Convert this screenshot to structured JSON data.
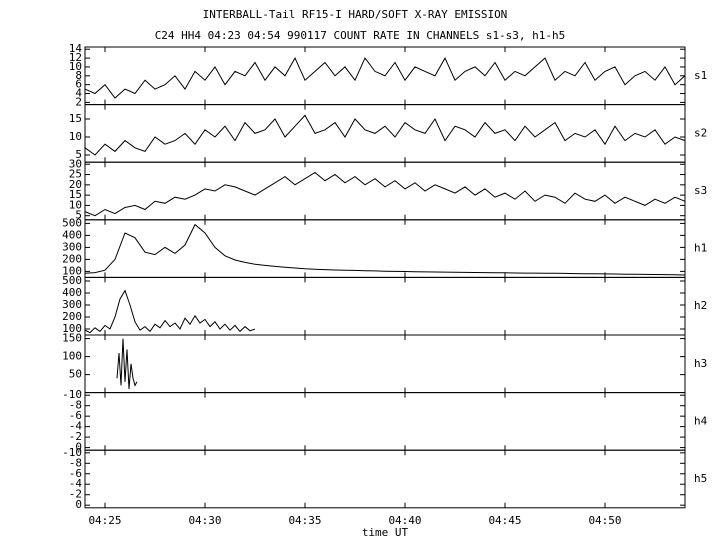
{
  "title": "INTERBALL-Tail RF15-I HARD/SOFT X-RAY EMISSION",
  "subtitle": "C24 HH4 04:23 04:54 990117  COUNT RATE IN CHANNELS s1-s3, h1-h5",
  "xlabel": "time UT",
  "time_axis": {
    "xlim": [
      24,
      54
    ],
    "xticks": [
      {
        "value": 25,
        "label": "04:25"
      },
      {
        "value": 30,
        "label": "04:30"
      },
      {
        "value": 35,
        "label": "04:35"
      },
      {
        "value": 40,
        "label": "04:40"
      },
      {
        "value": 45,
        "label": "04:45"
      },
      {
        "value": 50,
        "label": "04:50"
      }
    ]
  },
  "chart_data": [
    {
      "type": "line",
      "label": "s1",
      "color": "#000000",
      "ylim": [
        1.5,
        14.5
      ],
      "yticks": [
        2,
        4,
        6,
        8,
        10,
        12,
        14
      ],
      "x": [
        24,
        24.5,
        25,
        25.5,
        26,
        26.5,
        27,
        27.5,
        28,
        28.5,
        29,
        29.5,
        30,
        30.5,
        31,
        31.5,
        32,
        32.5,
        33,
        33.5,
        34,
        34.5,
        35,
        35.5,
        36,
        36.5,
        37,
        37.5,
        38,
        38.5,
        39,
        39.5,
        40,
        40.5,
        41,
        41.5,
        42,
        42.5,
        43,
        43.5,
        44,
        44.5,
        45,
        45.5,
        46,
        46.5,
        47,
        47.5,
        48,
        48.5,
        49,
        49.5,
        50,
        50.5,
        51,
        51.5,
        52,
        52.5,
        53,
        53.5,
        54
      ],
      "values": [
        5,
        4,
        6,
        3,
        5,
        4,
        7,
        5,
        6,
        8,
        5,
        9,
        7,
        10,
        6,
        9,
        8,
        11,
        7,
        10,
        8,
        12,
        7,
        9,
        11,
        8,
        10,
        7,
        12,
        9,
        8,
        11,
        7,
        10,
        9,
        8,
        12,
        7,
        9,
        10,
        8,
        11,
        7,
        9,
        8,
        10,
        12,
        7,
        9,
        8,
        11,
        7,
        9,
        10,
        6,
        8,
        9,
        7,
        10,
        6,
        8
      ]
    },
    {
      "type": "line",
      "label": "s2",
      "color": "#000000",
      "ylim": [
        3,
        19
      ],
      "yticks": [
        5,
        10,
        15
      ],
      "x": [
        24,
        24.5,
        25,
        25.5,
        26,
        26.5,
        27,
        27.5,
        28,
        28.5,
        29,
        29.5,
        30,
        30.5,
        31,
        31.5,
        32,
        32.5,
        33,
        33.5,
        34,
        34.5,
        35,
        35.5,
        36,
        36.5,
        37,
        37.5,
        38,
        38.5,
        39,
        39.5,
        40,
        40.5,
        41,
        41.5,
        42,
        42.5,
        43,
        43.5,
        44,
        44.5,
        45,
        45.5,
        46,
        46.5,
        47,
        47.5,
        48,
        48.5,
        49,
        49.5,
        50,
        50.5,
        51,
        51.5,
        52,
        52.5,
        53,
        53.5,
        54
      ],
      "values": [
        7,
        5,
        8,
        6,
        9,
        7,
        6,
        10,
        8,
        9,
        11,
        8,
        12,
        10,
        13,
        9,
        14,
        11,
        12,
        15,
        10,
        13,
        16,
        11,
        12,
        14,
        10,
        15,
        12,
        11,
        13,
        10,
        14,
        12,
        11,
        15,
        9,
        13,
        12,
        10,
        14,
        11,
        12,
        9,
        13,
        10,
        12,
        14,
        9,
        11,
        10,
        12,
        8,
        13,
        9,
        11,
        10,
        12,
        8,
        10,
        9
      ]
    },
    {
      "type": "line",
      "label": "s3",
      "color": "#000000",
      "ylim": [
        3,
        31
      ],
      "yticks": [
        5,
        10,
        15,
        20,
        25,
        30
      ],
      "x": [
        24,
        24.5,
        25,
        25.5,
        26,
        26.5,
        27,
        27.5,
        28,
        28.5,
        29,
        29.5,
        30,
        30.5,
        31,
        31.5,
        32,
        32.5,
        33,
        33.5,
        34,
        34.5,
        35,
        35.5,
        36,
        36.5,
        37,
        37.5,
        38,
        38.5,
        39,
        39.5,
        40,
        40.5,
        41,
        41.5,
        42,
        42.5,
        43,
        43.5,
        44,
        44.5,
        45,
        45.5,
        46,
        46.5,
        47,
        47.5,
        48,
        48.5,
        49,
        49.5,
        50,
        50.5,
        51,
        51.5,
        52,
        52.5,
        53,
        53.5,
        54
      ],
      "values": [
        7,
        5,
        8,
        6,
        9,
        10,
        8,
        12,
        11,
        14,
        13,
        15,
        18,
        17,
        20,
        19,
        17,
        15,
        18,
        21,
        24,
        20,
        23,
        26,
        22,
        25,
        21,
        24,
        20,
        23,
        19,
        22,
        18,
        21,
        17,
        20,
        18,
        16,
        19,
        15,
        18,
        14,
        16,
        13,
        17,
        12,
        15,
        14,
        11,
        16,
        13,
        12,
        15,
        11,
        14,
        12,
        10,
        13,
        11,
        14,
        12
      ]
    },
    {
      "type": "line",
      "label": "h1",
      "color": "#000000",
      "ylim": [
        50,
        530
      ],
      "yticks": [
        100,
        200,
        300,
        400,
        500
      ],
      "x": [
        24,
        24.5,
        25,
        25.5,
        26,
        26.5,
        27,
        27.5,
        28,
        28.5,
        29,
        29.5,
        30,
        30.5,
        31,
        31.5,
        32,
        32.5,
        33,
        33.5,
        34,
        34.5,
        35,
        35.5,
        36,
        36.5,
        37,
        37.5,
        38,
        38.5,
        39,
        39.5,
        40,
        40.5,
        41,
        41.5,
        42,
        42.5,
        43,
        43.5,
        44,
        44.5,
        45,
        45.5,
        46,
        46.5,
        47,
        47.5,
        48,
        48.5,
        49,
        49.5,
        50,
        50.5,
        51,
        51.5,
        52,
        52.5,
        53,
        53.5,
        54
      ],
      "values": [
        85,
        90,
        110,
        200,
        420,
        380,
        260,
        240,
        300,
        250,
        320,
        490,
        420,
        300,
        230,
        195,
        175,
        160,
        150,
        142,
        135,
        128,
        122,
        118,
        115,
        112,
        110,
        108,
        106,
        104,
        102,
        100,
        99,
        97,
        96,
        95,
        94,
        93,
        92,
        91,
        90,
        89,
        88,
        87,
        86,
        86,
        85,
        84,
        83,
        82,
        81,
        80,
        79,
        78,
        77,
        76,
        75,
        74,
        73,
        72,
        70
      ]
    },
    {
      "type": "line",
      "label": "h2",
      "color": "#000000",
      "ylim": [
        50,
        530
      ],
      "yticks": [
        100,
        200,
        300,
        400,
        500
      ],
      "x": [
        24,
        24.25,
        24.5,
        24.75,
        25,
        25.25,
        25.5,
        25.75,
        26,
        26.25,
        26.5,
        26.75,
        27,
        27.25,
        27.5,
        27.75,
        28,
        28.25,
        28.5,
        28.75,
        29,
        29.25,
        29.5,
        29.75,
        30,
        30.25,
        30.5,
        30.75,
        31,
        31.25,
        31.5,
        31.75,
        32,
        32.25,
        32.5
      ],
      "values": [
        90,
        70,
        110,
        80,
        130,
        100,
        200,
        350,
        420,
        300,
        160,
        90,
        120,
        80,
        140,
        110,
        170,
        120,
        150,
        100,
        190,
        140,
        210,
        150,
        180,
        120,
        160,
        100,
        140,
        90,
        130,
        80,
        120,
        85,
        100
      ]
    },
    {
      "type": "line",
      "label": "h3",
      "color": "#000000",
      "ylim": [
        0,
        160
      ],
      "yticks": [
        50,
        100,
        150
      ],
      "x": [
        25.6,
        25.7,
        25.8,
        25.9,
        26,
        26.1,
        26.2,
        26.3,
        26.4,
        26.5,
        26.6
      ],
      "values": [
        40,
        110,
        20,
        150,
        30,
        120,
        10,
        80,
        40,
        20,
        30
      ]
    },
    {
      "type": "line",
      "label": "h4",
      "ylim": [
        0.5,
        -10.5
      ],
      "yticks": [
        -10,
        -8,
        -6,
        -4,
        -2,
        0
      ]
    },
    {
      "type": "line",
      "label": "h5",
      "ylim": [
        0.5,
        -10.5
      ],
      "yticks": [
        -10,
        -8,
        -6,
        -4,
        -2,
        0
      ]
    }
  ]
}
